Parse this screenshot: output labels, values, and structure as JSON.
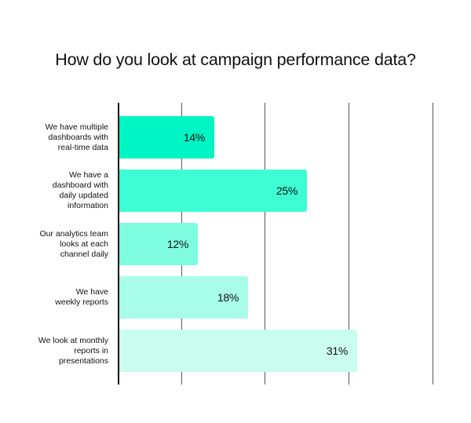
{
  "chart_data": {
    "type": "bar",
    "orientation": "horizontal",
    "title": "How do you look at campaign performance data?",
    "xlabel": "",
    "ylabel": "",
    "categories": [
      "We have multiple dashboards with real-time data",
      "We have a dashboard with daily updated information",
      "Our analytics team looks at each channel daily",
      "We have weekly reports",
      "We look at monthly reports in presentations"
    ],
    "category_lines": [
      [
        "We have multiple",
        "dashboards with",
        "real-time data"
      ],
      [
        "We have a",
        "dashboard with",
        "daily updated",
        "information"
      ],
      [
        "Our analytics team",
        "looks at each",
        "channel daily"
      ],
      [
        "We have",
        "weekly reports"
      ],
      [
        "We look at monthly",
        "reports in",
        "presentations"
      ]
    ],
    "values": [
      14,
      25,
      12,
      18,
      31
    ],
    "value_labels": [
      "14%",
      "25%",
      "12%",
      "18%",
      "31%"
    ],
    "colors": [
      "#00F5C4",
      "#3EFCD4",
      "#7FFDE0",
      "#A8FDE8",
      "#CBFCF0"
    ],
    "xlim": [
      0,
      40
    ],
    "gridlines": [
      10,
      20,
      30,
      40
    ],
    "grid": true,
    "legend": null
  }
}
